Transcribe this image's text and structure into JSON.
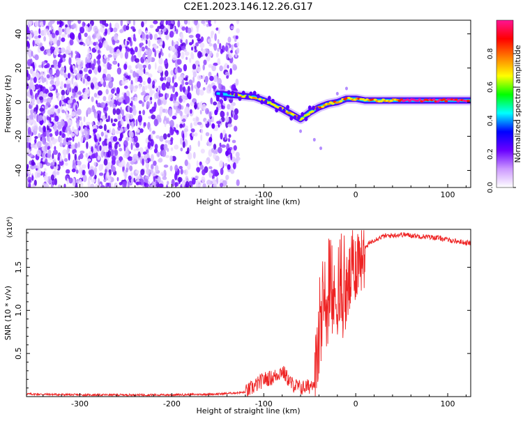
{
  "title": "C2E1.2023.146.12.26.G17",
  "chart_data": [
    {
      "type": "heatmap",
      "xlabel": "Height of straight line (km)",
      "ylabel": "Frequency (Hz)",
      "xlim": [
        -358,
        125
      ],
      "ylim": [
        -50,
        48
      ],
      "xticks": [
        -300,
        -200,
        -100,
        0,
        100
      ],
      "yticks": [
        -40,
        -20,
        0,
        20,
        40
      ],
      "colorbar": {
        "label": "Normalized spectral amplitude",
        "range": [
          0,
          1
        ],
        "ticks": [
          "0.0",
          "0.2",
          "0.4",
          "0.6",
          "0.8"
        ],
        "colors": [
          "#ffffff",
          "#cc99ff",
          "#6a00ff",
          "#0000ff",
          "#00ffff",
          "#00ff00",
          "#ffff00",
          "#ff7f00",
          "#ff0000",
          "#ff1493"
        ]
      },
      "ridge": {
        "x": [
          -150,
          -130,
          -110,
          -95,
          -80,
          -70,
          -60,
          -50,
          -40,
          -30,
          -20,
          -10,
          0,
          10,
          20,
          40,
          60,
          80,
          100,
          125
        ],
        "y": [
          5,
          4,
          3,
          0,
          -4,
          -7,
          -10,
          -6,
          -3,
          -1,
          0,
          2,
          2,
          1,
          1,
          1,
          1,
          1,
          1,
          1
        ]
      },
      "grid": false
    },
    {
      "type": "line",
      "xlabel": "Height of straight line (km)",
      "ylabel": "SNR (10 * v/v)",
      "ymultiplier": "(x10⁴)",
      "xlim": [
        -358,
        125
      ],
      "ylim": [
        0,
        1.94
      ],
      "xticks": [
        -300,
        -200,
        -100,
        0,
        100
      ],
      "yticks": [
        "0.5",
        "1.0",
        "1.5"
      ],
      "series": [
        {
          "color": "#ee2222",
          "x": [
            -358,
            -300,
            -200,
            -150,
            -120,
            -110,
            -100,
            -90,
            -80,
            -70,
            -60,
            -50,
            -45,
            -40,
            -35,
            -30,
            -25,
            -20,
            -15,
            -10,
            -5,
            0,
            5,
            10,
            15,
            20,
            30,
            40,
            50,
            60,
            70,
            80,
            90,
            100,
            110,
            125
          ],
          "y": [
            0.03,
            0.02,
            0.02,
            0.03,
            0.05,
            0.12,
            0.2,
            0.22,
            0.3,
            0.15,
            0.1,
            0.12,
            0.2,
            0.6,
            1.0,
            1.05,
            1.1,
            1.15,
            1.1,
            1.2,
            1.4,
            1.55,
            1.65,
            1.72,
            1.78,
            1.82,
            1.86,
            1.87,
            1.88,
            1.87,
            1.86,
            1.85,
            1.84,
            1.82,
            1.8,
            1.78
          ]
        }
      ]
    }
  ]
}
